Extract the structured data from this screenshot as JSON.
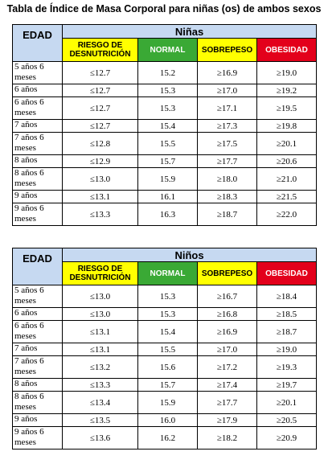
{
  "title": "Tabla de Índice de Masa Corporal para niñas (os) de ambos sexos",
  "colors": {
    "header_bg": "#c6d9f1",
    "riesgo": "#ffff00",
    "normal": "#3aa935",
    "sobrepeso": "#ffff00",
    "obesidad": "#e3001b"
  },
  "tables": [
    {
      "group": "Niñas",
      "edad": "EDAD",
      "categories": {
        "riesgo": "RIESGO DE DESNUTRICIÓN",
        "normal": "NORMAL",
        "sobrepeso": "SOBREPESO",
        "obesidad": "OBESIDAD"
      },
      "rows": [
        {
          "age": "5 años 6 meses",
          "riesgo": "≤12.7",
          "normal": "15.2",
          "sobrepeso": "≥16.9",
          "obesidad": "≥19.0"
        },
        {
          "age": "6 años",
          "riesgo": "≤12.7",
          "normal": "15.3",
          "sobrepeso": "≥17.0",
          "obesidad": "≥19.2"
        },
        {
          "age": "6 años 6 meses",
          "riesgo": "≤12.7",
          "normal": "15.3",
          "sobrepeso": "≥17.1",
          "obesidad": "≥19.5"
        },
        {
          "age": "7 años",
          "riesgo": "≤12.7",
          "normal": "15.4",
          "sobrepeso": "≥17.3",
          "obesidad": "≥19.8"
        },
        {
          "age": "7 años 6 meses",
          "riesgo": "≤12.8",
          "normal": "15.5",
          "sobrepeso": "≥17.5",
          "obesidad": "≥20.1"
        },
        {
          "age": "8 años",
          "riesgo": "≤12.9",
          "normal": "15.7",
          "sobrepeso": "≥17.7",
          "obesidad": "≥20.6"
        },
        {
          "age": "8 años 6 meses",
          "riesgo": "≤13.0",
          "normal": "15.9",
          "sobrepeso": "≥18.0",
          "obesidad": "≥21.0"
        },
        {
          "age": "9 años",
          "riesgo": "≤13.1",
          "normal": "16.1",
          "sobrepeso": "≥18.3",
          "obesidad": "≥21.5"
        },
        {
          "age": "9 años 6 meses",
          "riesgo": "≤13.3",
          "normal": "16.3",
          "sobrepeso": "≥18.7",
          "obesidad": "≥22.0"
        }
      ]
    },
    {
      "group": "Niños",
      "edad": "EDAD",
      "categories": {
        "riesgo": "RIESGO DE DESNUTRICIÓN",
        "normal": "NORMAL",
        "sobrepeso": "SOBREPESO",
        "obesidad": "OBESIDAD"
      },
      "rows": [
        {
          "age": "5 años 6 meses",
          "riesgo": "≤13.0",
          "normal": "15.3",
          "sobrepeso": "≥16.7",
          "obesidad": "≥18.4"
        },
        {
          "age": "6 años",
          "riesgo": "≤13.0",
          "normal": "15.3",
          "sobrepeso": "≥16.8",
          "obesidad": "≥18.5"
        },
        {
          "age": "6 años 6 meses",
          "riesgo": "≤13.1",
          "normal": "15.4",
          "sobrepeso": "≥16.9",
          "obesidad": "≥18.7"
        },
        {
          "age": "7 años",
          "riesgo": "≤13.1",
          "normal": "15.5",
          "sobrepeso": "≥17.0",
          "obesidad": "≥19.0"
        },
        {
          "age": "7 años 6 meses",
          "riesgo": "≤13.2",
          "normal": "15.6",
          "sobrepeso": "≥17.2",
          "obesidad": "≥19.3"
        },
        {
          "age": "8 años",
          "riesgo": "≤13.3",
          "normal": "15.7",
          "sobrepeso": "≥17.4",
          "obesidad": "≥19.7"
        },
        {
          "age": "8 años 6 meses",
          "riesgo": "≤13.4",
          "normal": "15.9",
          "sobrepeso": "≥17.7",
          "obesidad": "≥20.1"
        },
        {
          "age": "9 años",
          "riesgo": "≤13.5",
          "normal": "16.0",
          "sobrepeso": "≥17.9",
          "obesidad": "≥20.5"
        },
        {
          "age": "9 años 6 meses",
          "riesgo": "≤13.6",
          "normal": "16.2",
          "sobrepeso": "≥18.2",
          "obesidad": "≥20.9"
        }
      ]
    }
  ]
}
